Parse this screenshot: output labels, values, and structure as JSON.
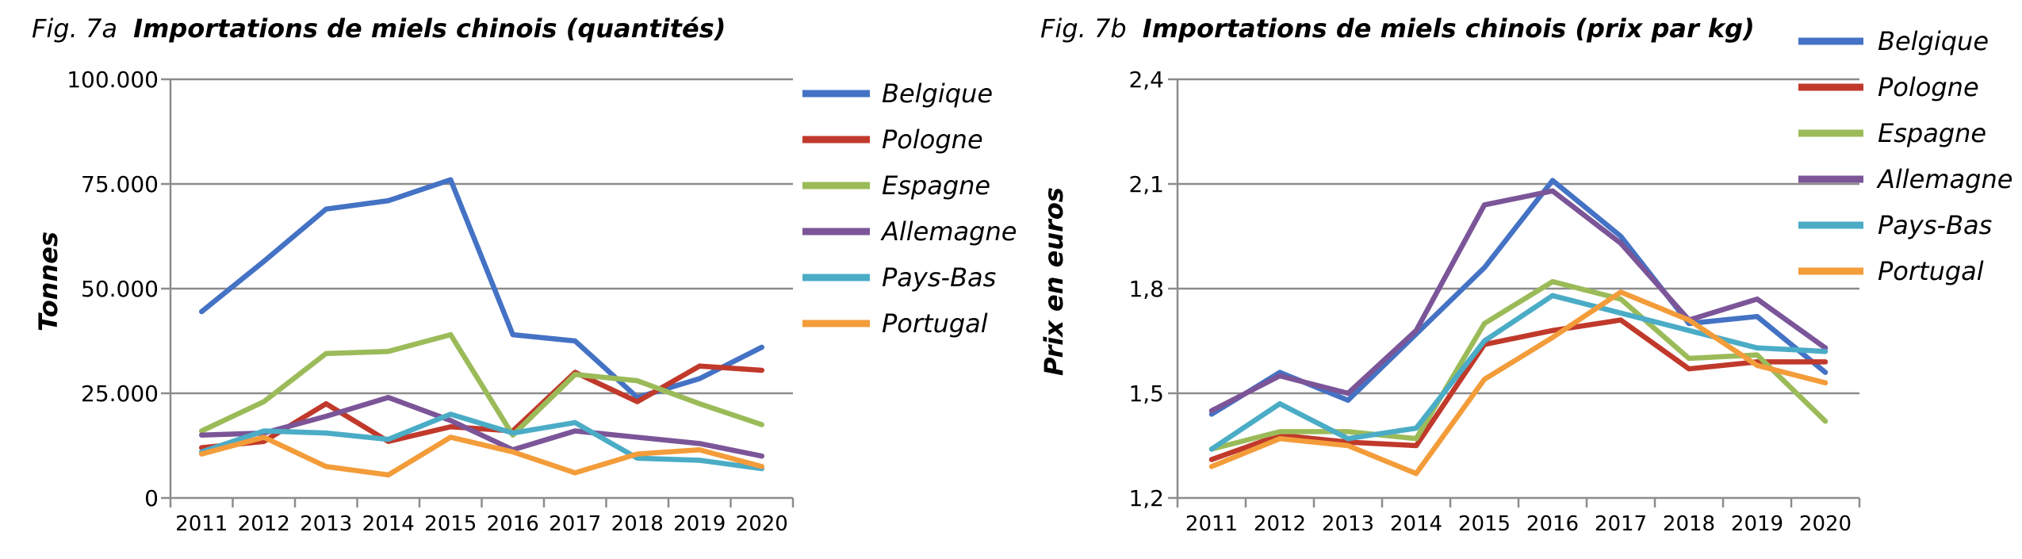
{
  "chart_data": [
    {
      "type": "line",
      "title_prefix": "Fig. 7a",
      "title": "Importations de miels chinois (quantités)",
      "xlabel": "",
      "ylabel": "Tonnes",
      "ylim": [
        0,
        100000
      ],
      "y_ticks": [
        "0",
        "25.000",
        "50.000",
        "75.000",
        "100.000"
      ],
      "y_tick_values": [
        0,
        25000,
        50000,
        75000,
        100000
      ],
      "grid": true,
      "legend": "right",
      "categories": [
        "2011",
        "2012",
        "2013",
        "2014",
        "2015",
        "2016",
        "2017",
        "2018",
        "2019",
        "2020"
      ],
      "series": [
        {
          "name": "Belgique",
          "color": "#4472C4",
          "values": [
            44500,
            56500,
            69000,
            71000,
            76000,
            39000,
            37500,
            24000,
            28500,
            36000
          ]
        },
        {
          "name": "Pologne",
          "color": "#C0392B",
          "values": [
            12000,
            13500,
            22500,
            13500,
            17000,
            16000,
            30000,
            23000,
            31500,
            30500
          ]
        },
        {
          "name": "Espagne",
          "color": "#9BBB59",
          "values": [
            16000,
            23000,
            34500,
            35000,
            39000,
            15000,
            29500,
            28000,
            22500,
            17500
          ]
        },
        {
          "name": "Allemagne",
          "color": "#7B5598",
          "values": [
            15000,
            15500,
            19500,
            24000,
            18500,
            11500,
            16000,
            14500,
            13000,
            10000
          ]
        },
        {
          "name": "Pays-Bas",
          "color": "#4BACC6",
          "values": [
            11000,
            16000,
            15500,
            14000,
            20000,
            15500,
            18000,
            9500,
            9000,
            7000
          ]
        },
        {
          "name": "Portugal",
          "color": "#F39C3A",
          "values": [
            10500,
            14500,
            7500,
            5500,
            14500,
            11000,
            6000,
            10500,
            11500,
            7500
          ]
        }
      ]
    },
    {
      "type": "line",
      "title_prefix": "Fig. 7b",
      "title": "Importations de miels chinois (prix par kg)",
      "xlabel": "",
      "ylabel": "Prix en euros",
      "ylim": [
        1.2,
        2.4
      ],
      "y_ticks": [
        "1,2",
        "1,5",
        "1,8",
        "2,1",
        "2,4"
      ],
      "y_tick_values": [
        1.2,
        1.5,
        1.8,
        2.1,
        2.4
      ],
      "grid": true,
      "legend": "right",
      "categories": [
        "2011",
        "2012",
        "2013",
        "2014",
        "2015",
        "2016",
        "2017",
        "2018",
        "2019",
        "2020"
      ],
      "series": [
        {
          "name": "Belgique",
          "color": "#4472C4",
          "values": [
            1.44,
            1.56,
            1.48,
            1.67,
            1.86,
            2.11,
            1.95,
            1.7,
            1.72,
            1.56
          ]
        },
        {
          "name": "Pologne",
          "color": "#C0392B",
          "values": [
            1.31,
            1.38,
            1.36,
            1.35,
            1.64,
            1.68,
            1.71,
            1.57,
            1.59,
            1.59
          ]
        },
        {
          "name": "Espagne",
          "color": "#9BBB59",
          "values": [
            1.34,
            1.39,
            1.39,
            1.37,
            1.7,
            1.82,
            1.77,
            1.6,
            1.61,
            1.42
          ]
        },
        {
          "name": "Allemagne",
          "color": "#7B5598",
          "values": [
            1.45,
            1.55,
            1.5,
            1.68,
            2.04,
            2.08,
            1.93,
            1.71,
            1.77,
            1.63
          ]
        },
        {
          "name": "Pays-Bas",
          "color": "#4BACC6",
          "values": [
            1.34,
            1.47,
            1.37,
            1.4,
            1.65,
            1.78,
            1.73,
            1.68,
            1.63,
            1.62
          ]
        },
        {
          "name": "Portugal",
          "color": "#F39C3A",
          "values": [
            1.29,
            1.37,
            1.35,
            1.27,
            1.54,
            1.66,
            1.79,
            1.71,
            1.58,
            1.53
          ]
        }
      ]
    }
  ]
}
